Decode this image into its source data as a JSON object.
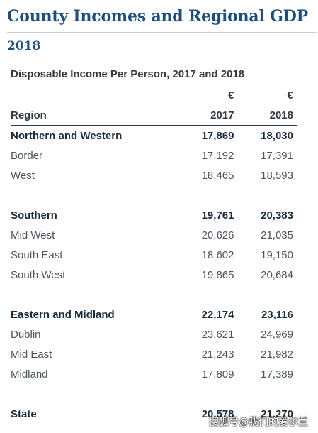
{
  "page": {
    "title": "County Incomes and Regional GDP",
    "year": "2018"
  },
  "table": {
    "caption": "Disposable Income Per Person, 2017 and 2018",
    "currency_symbol": "€",
    "columns": {
      "region": "Region",
      "year1": "2017",
      "year2": "2018"
    },
    "rows": [
      {
        "region": "Northern and Western",
        "v2017": "17,869",
        "v2018": "18,030"
      },
      {
        "region": "Border",
        "v2017": "17,192",
        "v2018": "17,391"
      },
      {
        "region": "West",
        "v2017": "18,465",
        "v2018": "18,593"
      },
      {
        "region": "Southern",
        "v2017": "19,761",
        "v2018": "20,383"
      },
      {
        "region": "Mid West",
        "v2017": "20,626",
        "v2018": "21,035"
      },
      {
        "region": "South East",
        "v2017": "18,602",
        "v2018": "19,150"
      },
      {
        "region": "South West",
        "v2017": "19,865",
        "v2018": "20,684"
      },
      {
        "region": "Eastern and Midland",
        "v2017": "22,174",
        "v2018": "23,116"
      },
      {
        "region": "Dublin",
        "v2017": "23,621",
        "v2018": "24,969"
      },
      {
        "region": "Mid East",
        "v2017": "21,243",
        "v2018": "21,982"
      },
      {
        "region": "Midland",
        "v2017": "17,809",
        "v2018": "17,389"
      },
      {
        "region": "State",
        "v2017": "20,578",
        "v2018": "21,270"
      }
    ]
  },
  "watermark": "搜狐号@我们的爱尔兰",
  "colors": {
    "title": "#1f4e79",
    "rule": "#c9d3dc",
    "text": "#4a5560",
    "group_text": "#1a2b3c"
  }
}
